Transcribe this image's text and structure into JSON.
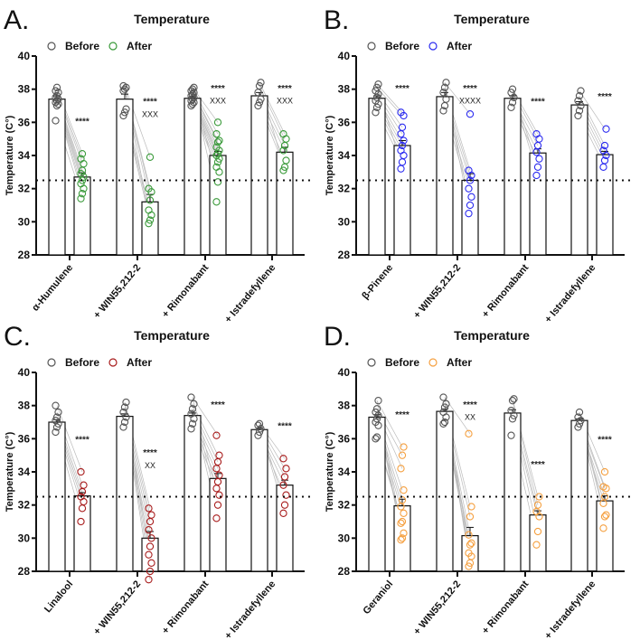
{
  "chart_data": [
    {
      "panel_label": "A.",
      "type": "bar",
      "title": "Temperature",
      "ylabel": "Temperature (C°)",
      "ylim": [
        28,
        40
      ],
      "yticks": [
        "28",
        "30",
        "32",
        "34",
        "36",
        "38",
        "40"
      ],
      "reference_line": 32.5,
      "legend": {
        "before": "Before",
        "after": "After",
        "placement": "top-left"
      },
      "after_color": "#3a9a3a",
      "categories": [
        "α-Humulene",
        "+ WIN55,212-2",
        "+ Rimonabant",
        "+ Istradefyllene"
      ],
      "groups": [
        {
          "before_mean": 37.4,
          "before_sem": 0.2,
          "before": [
            36.1,
            37.0,
            37.1,
            37.2,
            37.3,
            37.4,
            37.5,
            37.6,
            37.8,
            37.9,
            38.1
          ],
          "after_mean": 32.7,
          "after_sem": 0.25,
          "after": [
            31.4,
            31.7,
            32.0,
            32.3,
            32.5,
            32.7,
            32.9,
            33.1,
            33.5,
            33.8,
            34.1
          ],
          "sig": "****",
          "sig2": ""
        },
        {
          "before_mean": 37.4,
          "before_sem": 0.3,
          "before": [
            36.4,
            36.6,
            36.8,
            37.9,
            38.0,
            38.1,
            38.2
          ],
          "after_mean": 31.2,
          "after_sem": 0.45,
          "after": [
            29.9,
            30.1,
            30.4,
            30.7,
            31.3,
            31.8,
            32.0,
            33.9
          ],
          "sig": "****",
          "sig2": "XXX"
        },
        {
          "before_mean": 37.45,
          "before_sem": 0.1,
          "before": [
            37.0,
            37.1,
            37.2,
            37.3,
            37.4,
            37.5,
            37.6,
            37.7,
            37.8,
            37.9,
            38.0,
            38.1
          ],
          "after_mean": 34.0,
          "after_sem": 0.25,
          "after": [
            31.2,
            32.4,
            33.0,
            33.3,
            33.6,
            33.8,
            34.0,
            34.1,
            34.3,
            34.5,
            34.8,
            34.9,
            35.3,
            36.0
          ],
          "sig": "****",
          "sig2": "XXX"
        },
        {
          "before_mean": 37.6,
          "before_sem": 0.2,
          "before": [
            37.0,
            37.2,
            37.4,
            37.8,
            38.2,
            38.4
          ],
          "after_mean": 34.2,
          "after_sem": 0.3,
          "after": [
            33.1,
            33.3,
            33.7,
            34.3,
            34.6,
            35.0,
            35.3
          ],
          "sig": "****",
          "sig2": "XXX"
        }
      ]
    },
    {
      "panel_label": "B.",
      "type": "bar",
      "title": "Temperature",
      "ylabel": "Temperature (C°)",
      "ylim": [
        28,
        40
      ],
      "yticks": [
        "28",
        "30",
        "32",
        "34",
        "36",
        "38",
        "40"
      ],
      "reference_line": 32.5,
      "legend": {
        "before": "Before",
        "after": "After",
        "placement": "top-left"
      },
      "after_color": "#2b2bf0",
      "categories": [
        "β-Pinene",
        "+ WIN55,212-2",
        "+ Rimonabant",
        "+ Istradefyllene"
      ],
      "groups": [
        {
          "before_mean": 37.45,
          "before_sem": 0.15,
          "before": [
            36.6,
            36.9,
            37.1,
            37.3,
            37.5,
            37.7,
            37.9,
            38.1,
            38.3
          ],
          "after_mean": 34.6,
          "after_sem": 0.3,
          "after": [
            33.2,
            33.6,
            34.0,
            34.3,
            34.6,
            34.9,
            35.3,
            35.7,
            36.4,
            36.6
          ],
          "sig": "****",
          "sig2": ""
        },
        {
          "before_mean": 37.55,
          "before_sem": 0.25,
          "before": [
            36.7,
            37.0,
            37.4,
            37.8,
            38.1,
            38.4
          ],
          "after_mean": 32.5,
          "after_sem": 0.4,
          "after": [
            30.5,
            31.0,
            31.5,
            32.0,
            32.5,
            32.8,
            33.1,
            36.5
          ],
          "sig": "****",
          "sig2": "XXXX"
        },
        {
          "before_mean": 37.45,
          "before_sem": 0.15,
          "before": [
            36.9,
            37.2,
            37.5,
            37.8,
            38.0
          ],
          "after_mean": 34.15,
          "after_sem": 0.25,
          "after": [
            32.8,
            33.3,
            33.8,
            34.2,
            34.6,
            35.0,
            35.3
          ],
          "sig": "****",
          "sig2": ""
        },
        {
          "before_mean": 37.05,
          "before_sem": 0.2,
          "before": [
            36.4,
            36.7,
            37.0,
            37.3,
            37.6,
            37.9
          ],
          "after_mean": 34.05,
          "after_sem": 0.2,
          "after": [
            33.3,
            33.7,
            34.0,
            34.3,
            34.6,
            35.6
          ],
          "sig": "****",
          "sig2": ""
        }
      ]
    },
    {
      "panel_label": "C.",
      "type": "bar",
      "title": "Temperature",
      "ylabel": "Temperature (C°)",
      "ylim": [
        28,
        40
      ],
      "yticks": [
        "28",
        "30",
        "32",
        "34",
        "36",
        "38",
        "40"
      ],
      "reference_line": 32.5,
      "legend": {
        "before": "Before",
        "after": "After",
        "placement": "top-left"
      },
      "after_color": "#a81c1c",
      "categories": [
        "Linalool",
        "+ WIN55,212-2",
        "+ Rimonabant",
        "+ Istradefyllene"
      ],
      "groups": [
        {
          "before_mean": 37.0,
          "before_sem": 0.15,
          "before": [
            36.4,
            36.7,
            36.9,
            37.1,
            37.3,
            37.6,
            38.0
          ],
          "after_mean": 32.55,
          "after_sem": 0.2,
          "after": [
            31.0,
            31.8,
            32.2,
            32.5,
            32.8,
            33.2,
            34.0
          ],
          "sig": "****",
          "sig2": ""
        },
        {
          "before_mean": 37.35,
          "before_sem": 0.15,
          "before": [
            36.7,
            37.0,
            37.3,
            37.6,
            37.9,
            38.2
          ],
          "after_mean": 30.0,
          "after_sem": 0.4,
          "after": [
            27.5,
            28.0,
            28.5,
            29.0,
            29.5,
            30.0,
            30.5,
            31.0,
            31.4,
            31.8
          ],
          "sig": "****",
          "sig2": "XX"
        },
        {
          "before_mean": 37.4,
          "before_sem": 0.15,
          "before": [
            36.6,
            36.9,
            37.2,
            37.5,
            37.8,
            38.1,
            38.5
          ],
          "after_mean": 33.6,
          "after_sem": 0.3,
          "after": [
            31.2,
            32.0,
            32.6,
            33.0,
            33.4,
            33.8,
            34.2,
            34.6,
            35.0,
            36.2
          ],
          "sig": "****",
          "sig2": ""
        },
        {
          "before_mean": 36.55,
          "before_sem": 0.1,
          "before": [
            36.2,
            36.4,
            36.6,
            36.8,
            36.9
          ],
          "after_mean": 33.2,
          "after_sem": 0.3,
          "after": [
            31.5,
            32.0,
            32.6,
            33.2,
            33.7,
            34.2,
            34.8
          ],
          "sig": "****",
          "sig2": ""
        }
      ]
    },
    {
      "panel_label": "D.",
      "type": "bar",
      "title": "Temperature",
      "ylabel": "Temperature (C°)",
      "ylim": [
        28,
        40
      ],
      "yticks": [
        "28",
        "30",
        "32",
        "34",
        "36",
        "38",
        "40"
      ],
      "reference_line": 32.5,
      "legend": {
        "before": "Before",
        "after": "After",
        "placement": "top-left"
      },
      "after_color": "#f5a040",
      "categories": [
        "Geraniol",
        "+ WIN55,212-2",
        "+ Rimonabant",
        "+ Istradefyllene"
      ],
      "groups": [
        {
          "before_mean": 37.3,
          "before_sem": 0.15,
          "before": [
            36.0,
            36.1,
            36.8,
            37.0,
            37.2,
            37.4,
            37.6,
            37.8,
            38.3
          ],
          "after_mean": 31.95,
          "after_sem": 0.4,
          "after": [
            29.9,
            30.0,
            30.3,
            30.9,
            31.0,
            31.5,
            31.9,
            32.3,
            32.9,
            34.2,
            35.0,
            35.5
          ],
          "sig": "****",
          "sig2": ""
        },
        {
          "before_mean": 37.65,
          "before_sem": 0.15,
          "before": [
            36.9,
            37.0,
            37.3,
            37.6,
            37.9,
            38.1,
            38.5
          ],
          "after_mean": 30.15,
          "after_sem": 0.5,
          "after": [
            28.3,
            28.5,
            28.9,
            29.1,
            29.6,
            29.7,
            30.2,
            31.3,
            31.9,
            36.3
          ],
          "sig": "****",
          "sig2": "XX"
        },
        {
          "before_mean": 37.55,
          "before_sem": 0.2,
          "before": [
            36.2,
            37.2,
            37.4,
            37.7,
            38.3,
            38.4
          ],
          "after_mean": 31.4,
          "after_sem": 0.25,
          "after": [
            29.6,
            30.4,
            31.3,
            31.6,
            32.0,
            32.5
          ],
          "sig": "****",
          "sig2": ""
        },
        {
          "before_mean": 37.1,
          "before_sem": 0.1,
          "before": [
            36.7,
            36.9,
            37.1,
            37.3,
            37.6
          ],
          "after_mean": 32.25,
          "after_sem": 0.3,
          "after": [
            30.6,
            31.3,
            31.4,
            32.1,
            32.5,
            33.0,
            33.1,
            34.0
          ],
          "sig": "****",
          "sig2": ""
        }
      ]
    }
  ]
}
